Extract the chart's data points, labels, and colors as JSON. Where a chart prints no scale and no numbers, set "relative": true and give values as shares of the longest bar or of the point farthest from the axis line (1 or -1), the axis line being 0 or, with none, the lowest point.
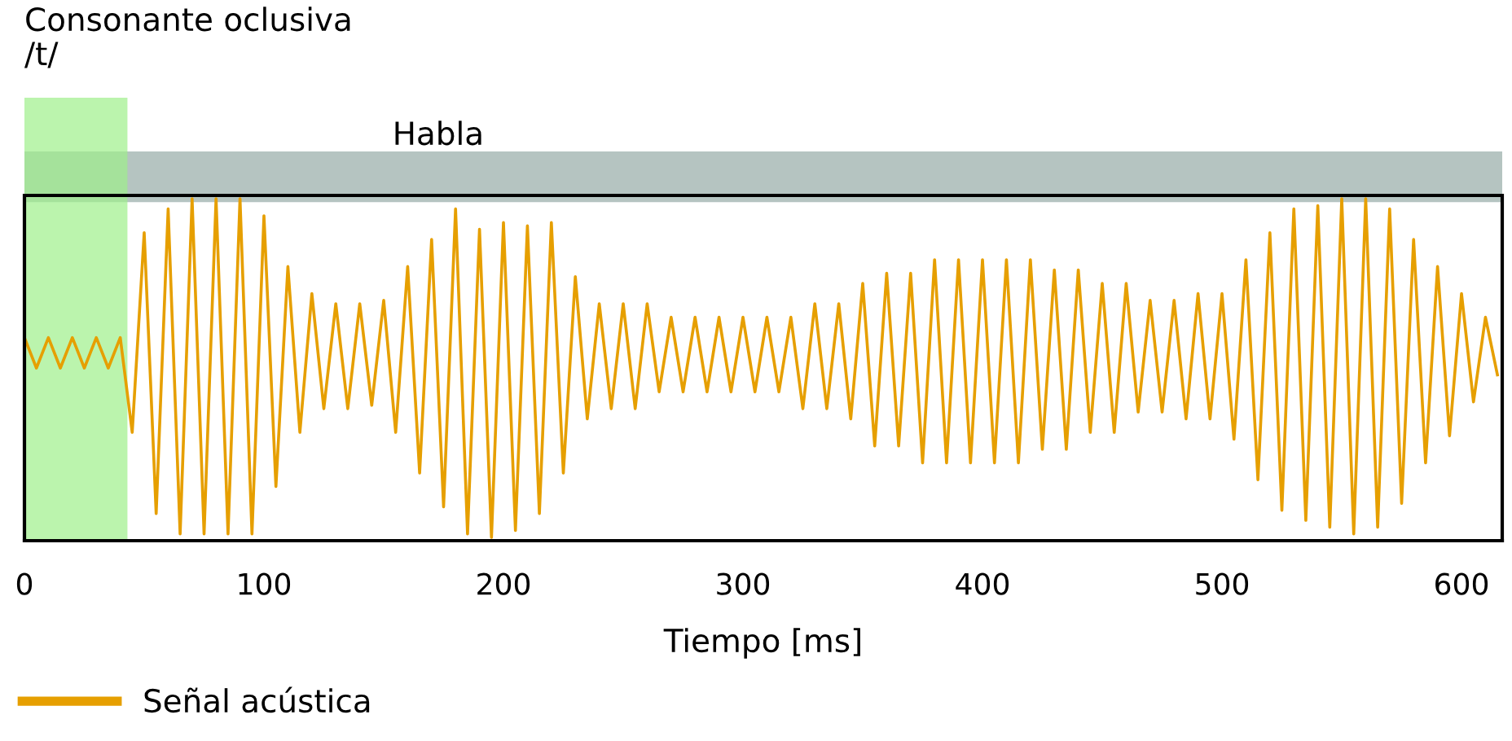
{
  "chart_data": {
    "type": "line",
    "relative": true,
    "xlabel": "Tiempo [ms]",
    "xlim": [
      0,
      617
    ],
    "xticks": [
      0,
      100,
      200,
      300,
      400,
      500,
      600
    ],
    "legend": "bottom left",
    "grid": false,
    "bands": [
      {
        "axis": "x",
        "from": 0,
        "to": 43,
        "label": "Consonante oclusiva /t/",
        "color": "#9ef08a"
      },
      {
        "axis": "y",
        "from": 0.99,
        "to": 1.14,
        "label": "Habla",
        "color": "#b5c4c1"
      }
    ],
    "series": [
      {
        "name": "Señal acústica",
        "color": "#e69f00",
        "x": [
          0,
          5,
          10,
          15,
          20,
          25,
          30,
          35,
          40,
          45,
          50,
          55,
          60,
          65,
          70,
          75,
          80,
          85,
          90,
          95,
          100,
          105,
          110,
          115,
          120,
          125,
          130,
          135,
          140,
          145,
          150,
          155,
          160,
          165,
          170,
          175,
          180,
          185,
          190,
          195,
          200,
          205,
          210,
          215,
          220,
          225,
          230,
          235,
          240,
          245,
          250,
          255,
          260,
          265,
          270,
          275,
          280,
          285,
          290,
          295,
          300,
          305,
          310,
          315,
          320,
          325,
          330,
          335,
          340,
          345,
          350,
          355,
          360,
          365,
          370,
          375,
          380,
          385,
          390,
          395,
          400,
          405,
          410,
          415,
          420,
          425,
          430,
          435,
          440,
          445,
          450,
          455,
          460,
          465,
          470,
          475,
          480,
          485,
          490,
          495,
          500,
          505,
          510,
          515,
          520,
          525,
          530,
          535,
          540,
          545,
          550,
          555,
          560,
          565,
          570,
          575,
          580,
          585,
          590,
          595,
          600,
          605,
          610,
          615
        ],
        "values": [
          0.59,
          0.5,
          0.59,
          0.5,
          0.59,
          0.5,
          0.59,
          0.5,
          0.59,
          0.31,
          0.9,
          0.07,
          0.97,
          0.01,
          1.0,
          0.01,
          1.0,
          0.01,
          1.0,
          0.01,
          0.95,
          0.15,
          0.8,
          0.31,
          0.72,
          0.38,
          0.69,
          0.38,
          0.69,
          0.39,
          0.7,
          0.31,
          0.8,
          0.19,
          0.88,
          0.09,
          0.97,
          0.01,
          0.91,
          0.0,
          0.93,
          0.02,
          0.92,
          0.07,
          0.93,
          0.19,
          0.77,
          0.35,
          0.69,
          0.38,
          0.69,
          0.38,
          0.69,
          0.43,
          0.65,
          0.43,
          0.65,
          0.43,
          0.65,
          0.43,
          0.65,
          0.43,
          0.65,
          0.43,
          0.65,
          0.38,
          0.69,
          0.38,
          0.69,
          0.35,
          0.75,
          0.27,
          0.78,
          0.27,
          0.78,
          0.22,
          0.82,
          0.22,
          0.82,
          0.22,
          0.82,
          0.22,
          0.82,
          0.22,
          0.82,
          0.26,
          0.79,
          0.26,
          0.79,
          0.31,
          0.75,
          0.31,
          0.75,
          0.37,
          0.7,
          0.37,
          0.7,
          0.35,
          0.72,
          0.35,
          0.72,
          0.29,
          0.82,
          0.17,
          0.9,
          0.08,
          0.97,
          0.05,
          0.98,
          0.03,
          1.0,
          0.01,
          1.0,
          0.03,
          0.97,
          0.1,
          0.88,
          0.22,
          0.8,
          0.3,
          0.72,
          0.4,
          0.65,
          0.48
        ]
      }
    ]
  }
}
